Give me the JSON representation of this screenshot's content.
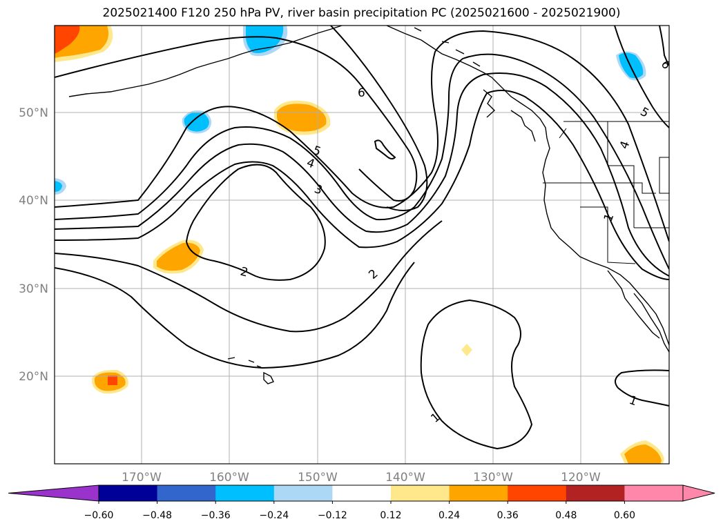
{
  "title": "2025021400 F120 250 hPa PV, river basin precipitation PC (2025021600 - 2025021900)",
  "lat_labels": [
    "50°N",
    "40°N",
    "30°N",
    "20°N"
  ],
  "lon_labels": [
    "170°W",
    "160°W",
    "150°W",
    "140°W",
    "130°W",
    "120°W"
  ],
  "contour_labels": [
    "6",
    "5",
    "4",
    "3",
    "2",
    "2",
    "1",
    "1",
    "1",
    "5",
    "4",
    "6"
  ],
  "colorbar": {
    "ticks": [
      "−0.60",
      "−0.48",
      "−0.36",
      "−0.24",
      "−0.12",
      "0.12",
      "0.24",
      "0.36",
      "0.48",
      "0.60"
    ],
    "colors": [
      "#9933cc",
      "#000099",
      "#3366cc",
      "#00bfff",
      "#add8f5",
      "#ffffff",
      "#ffe88c",
      "#ffa500",
      "#ff4500",
      "#b22222",
      "#ff88aa",
      "#ff88aa"
    ]
  },
  "fill_colors": {
    "pos_light": "#ffe88c",
    "pos_mid": "#ffa500",
    "pos_strong": "#ff4500",
    "neg_light": "#add8f5",
    "neg_mid": "#00bfff"
  }
}
